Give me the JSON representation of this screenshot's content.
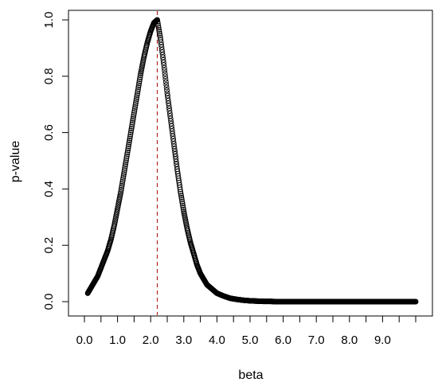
{
  "chart_data": {
    "type": "scatter",
    "title": "",
    "xlabel": "beta",
    "ylabel": "p-value",
    "xlim": [
      0,
      10
    ],
    "ylim": [
      0,
      1
    ],
    "x_ticks": [
      0,
      0.5,
      1,
      1.5,
      2,
      2.5,
      3,
      3.5,
      4,
      4.5,
      5,
      5.5,
      6,
      6.5,
      7,
      7.5,
      8,
      8.5,
      9,
      9.5,
      10
    ],
    "x_tick_labels": [
      {
        "value": 0,
        "label": "0.0"
      },
      {
        "value": 1,
        "label": "1.0"
      },
      {
        "value": 2,
        "label": "2.0"
      },
      {
        "value": 3,
        "label": "3.0"
      },
      {
        "value": 4,
        "label": "4.0"
      },
      {
        "value": 5,
        "label": "5.0"
      },
      {
        "value": 6,
        "label": "6.0"
      },
      {
        "value": 7,
        "label": "7.0"
      },
      {
        "value": 8,
        "label": "8.0"
      },
      {
        "value": 9,
        "label": "9.0"
      }
    ],
    "y_ticks": [
      {
        "value": 0,
        "label": "0.0"
      },
      {
        "value": 0.2,
        "label": "0.2"
      },
      {
        "value": 0.4,
        "label": "0.4"
      },
      {
        "value": 0.6,
        "label": "0.6"
      },
      {
        "value": 0.8,
        "label": "0.8"
      },
      {
        "value": 1,
        "label": "1.0"
      }
    ],
    "grid": false,
    "legend": "none",
    "point_style": "open-circle",
    "point_color": "#000000",
    "vline": {
      "x": 2.2,
      "color": "#b22222",
      "style": "dashed"
    },
    "series": [
      {
        "x": [
          0.1,
          0.2,
          0.3,
          0.4,
          0.5,
          0.6,
          0.7,
          0.8,
          0.9,
          1.0,
          1.1,
          1.2,
          1.3,
          1.4,
          1.5,
          1.6,
          1.7,
          1.8,
          1.9,
          2.0,
          2.1,
          2.2,
          2.3,
          2.4,
          2.5,
          2.6,
          2.7,
          2.8,
          2.9,
          3.0,
          3.1,
          3.2,
          3.3,
          3.4,
          3.5,
          3.6,
          3.7,
          3.8,
          3.9,
          4.0,
          4.2,
          4.4,
          4.6,
          4.8,
          5.0,
          5.2,
          5.4,
          5.6,
          5.8,
          6.0,
          6.5,
          7.0,
          7.5,
          8.0,
          8.5,
          9.0,
          9.5,
          10.0
        ],
        "y": [
          0.03,
          0.05,
          0.07,
          0.09,
          0.12,
          0.15,
          0.18,
          0.22,
          0.27,
          0.33,
          0.39,
          0.46,
          0.53,
          0.6,
          0.67,
          0.74,
          0.81,
          0.87,
          0.92,
          0.96,
          0.99,
          1.0,
          0.93,
          0.84,
          0.74,
          0.65,
          0.56,
          0.47,
          0.39,
          0.32,
          0.26,
          0.21,
          0.17,
          0.13,
          0.1,
          0.08,
          0.06,
          0.05,
          0.04,
          0.03,
          0.02,
          0.012,
          0.008,
          0.005,
          0.003,
          0.002,
          0.001,
          0.001,
          0.0,
          0.0,
          0.0,
          0.0,
          0.0,
          0.0,
          0.0,
          0.0,
          0.0,
          0.0
        ]
      }
    ]
  }
}
